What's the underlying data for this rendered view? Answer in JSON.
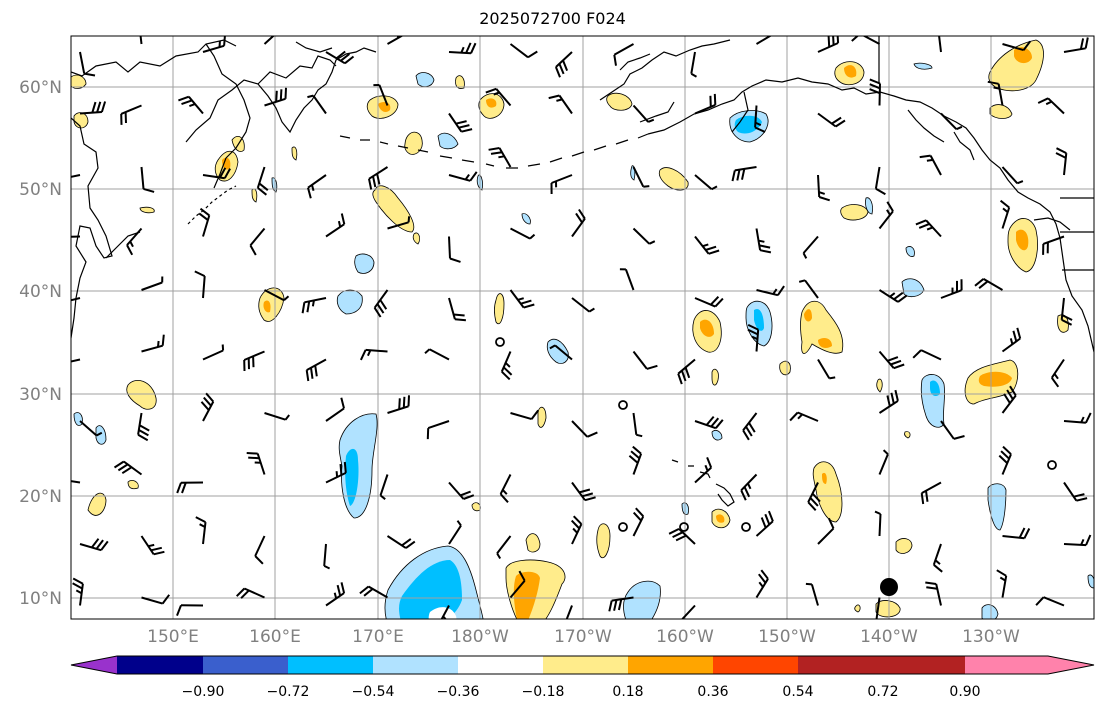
{
  "title": "2025072700 F024",
  "map": {
    "lon_range_east": [
      140,
      240
    ],
    "lat_range": [
      8,
      65
    ],
    "grid": true,
    "lat_labels": [
      "10°N",
      "20°N",
      "30°N",
      "40°N",
      "50°N",
      "60°N"
    ],
    "lon_labels": [
      "150°E",
      "160°E",
      "170°E",
      "180°W",
      "170°W",
      "160°W",
      "150°W",
      "140°W",
      "130°W"
    ]
  },
  "colorbar": {
    "extend": "both",
    "colors": [
      "#9932cc",
      "#00008b",
      "#3a5fcd",
      "#00bfff",
      "#b0e2ff",
      "#ffffff",
      "#ffec8b",
      "#ffa500",
      "#ff4500",
      "#b22222",
      "#ff82ab"
    ],
    "tick_labels": [
      "−0.90",
      "−0.72",
      "−0.54",
      "−0.36",
      "−0.18",
      "0.18",
      "0.36",
      "0.54",
      "0.72",
      "0.90"
    ]
  },
  "colors": {
    "coast": "#000000",
    "grid": "#a0a0a0",
    "label": "#808080"
  }
}
